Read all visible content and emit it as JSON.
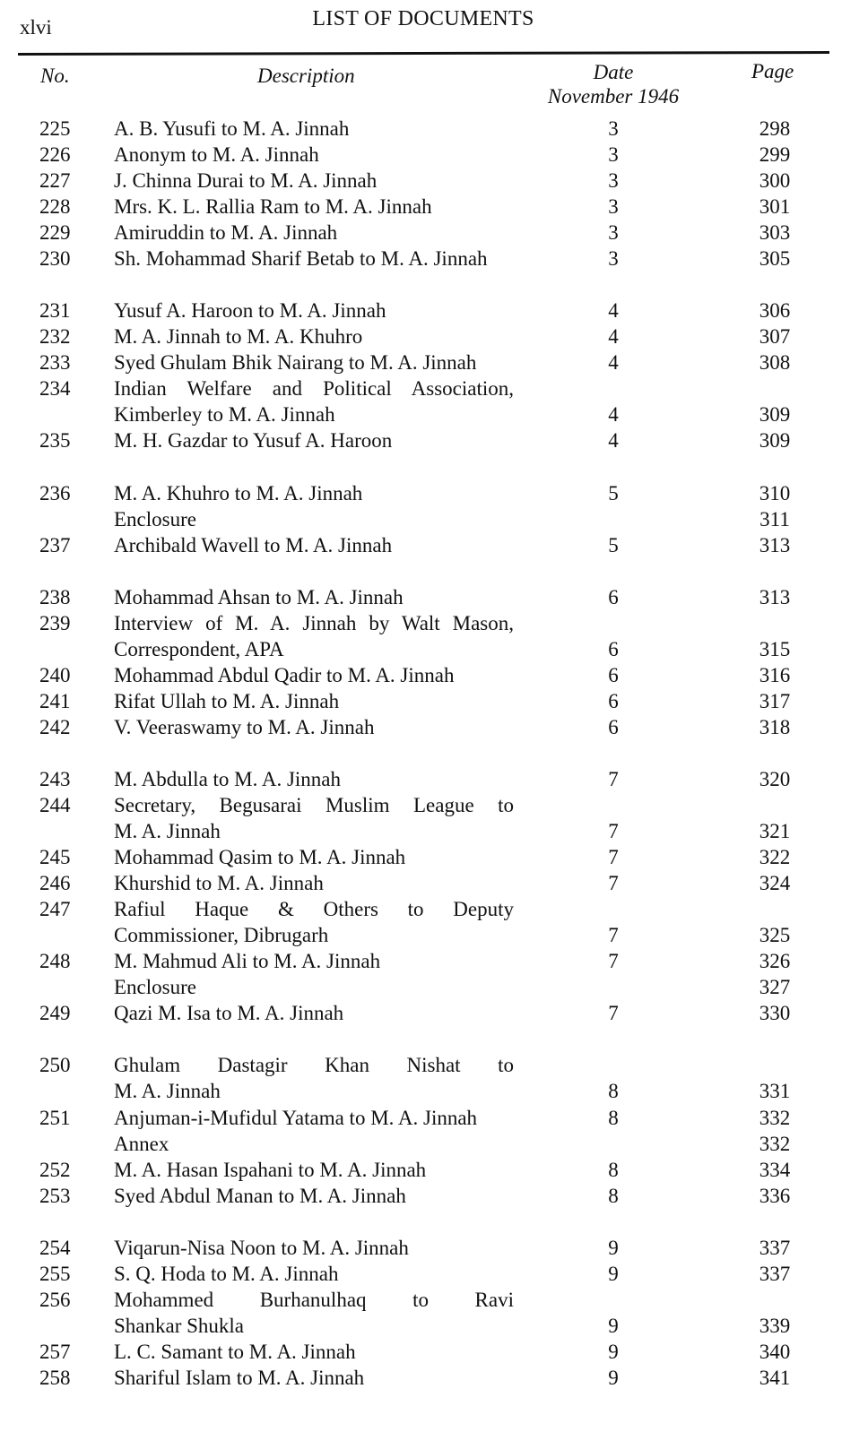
{
  "header": {
    "folio": "xlvi",
    "title": "LIST OF DOCUMENTS"
  },
  "columns": {
    "no": "No.",
    "description": "Description",
    "date": "Date",
    "date_sub": "November 1946",
    "page": "Page"
  },
  "groups": [
    [
      {
        "no": "225",
        "lines": [
          "A. B. Yusufi to M. A. Jinnah"
        ],
        "date": "3",
        "page": "298"
      },
      {
        "no": "226",
        "lines": [
          "Anonym to M. A. Jinnah"
        ],
        "date": "3",
        "page": "299"
      },
      {
        "no": "227",
        "lines": [
          "J. Chinna Durai to M. A. Jinnah"
        ],
        "date": "3",
        "page": "300"
      },
      {
        "no": "228",
        "lines": [
          "Mrs. K. L. Rallia Ram to M. A. Jinnah"
        ],
        "date": "3",
        "page": "301"
      },
      {
        "no": "229",
        "lines": [
          "Amiruddin to M. A. Jinnah"
        ],
        "date": "3",
        "page": "303"
      },
      {
        "no": "230",
        "lines": [
          "Sh. Mohammad Sharif Betab to M. A. Jinnah"
        ],
        "date": "3",
        "page": "305"
      }
    ],
    [
      {
        "no": "231",
        "lines": [
          "Yusuf A. Haroon to M. A. Jinnah"
        ],
        "date": "4",
        "page": "306"
      },
      {
        "no": "232",
        "lines": [
          "M. A. Jinnah to M. A. Khuhro"
        ],
        "date": "4",
        "page": "307"
      },
      {
        "no": "233",
        "lines": [
          "Syed Ghulam Bhik Nairang to M. A. Jinnah"
        ],
        "date": "4",
        "page": "308"
      },
      {
        "no": "234",
        "lines": [
          "Indian Welfare and Political Association,",
          "Kimberley to M. A. Jinnah"
        ],
        "date": "4",
        "page": "309"
      },
      {
        "no": "235",
        "lines": [
          "M. H. Gazdar to Yusuf A. Haroon"
        ],
        "date": "4",
        "page": "309"
      }
    ],
    [
      {
        "no": "236",
        "lines": [
          "M. A. Khuhro to M. A. Jinnah"
        ],
        "date": "5",
        "page": "310"
      },
      {
        "no": "",
        "lines": [
          "Enclosure"
        ],
        "date": "",
        "page": "311"
      },
      {
        "no": "237",
        "lines": [
          "Archibald Wavell to M. A. Jinnah"
        ],
        "date": "5",
        "page": "313"
      }
    ],
    [
      {
        "no": "238",
        "lines": [
          "Mohammad Ahsan to M. A. Jinnah"
        ],
        "date": "6",
        "page": "313"
      },
      {
        "no": "239",
        "lines": [
          "Interview of M. A. Jinnah by Walt Mason,",
          "Correspondent, APA"
        ],
        "date": "6",
        "page": "315"
      },
      {
        "no": "240",
        "lines": [
          "Mohammad Abdul Qadir to M. A. Jinnah"
        ],
        "date": "6",
        "page": "316"
      },
      {
        "no": "241",
        "lines": [
          "Rifat Ullah to M. A. Jinnah"
        ],
        "date": "6",
        "page": "317"
      },
      {
        "no": "242",
        "lines": [
          "V. Veeraswamy to M. A. Jinnah"
        ],
        "date": "6",
        "page": "318"
      }
    ],
    [
      {
        "no": "243",
        "lines": [
          "M. Abdulla to M. A. Jinnah"
        ],
        "date": "7",
        "page": "320"
      },
      {
        "no": "244",
        "lines": [
          "Secretary, Begusarai Muslim League to",
          "M. A. Jinnah"
        ],
        "date": "7",
        "page": "321"
      },
      {
        "no": "245",
        "lines": [
          "Mohammad Qasim to M. A. Jinnah"
        ],
        "date": "7",
        "page": "322"
      },
      {
        "no": "246",
        "lines": [
          "Khurshid to M. A. Jinnah"
        ],
        "date": "7",
        "page": "324"
      },
      {
        "no": "247",
        "lines": [
          "Rafiul Haque & Others to Deputy",
          "Commissioner, Dibrugarh"
        ],
        "date": "7",
        "page": "325"
      },
      {
        "no": "248",
        "lines": [
          "M. Mahmud Ali to M. A. Jinnah"
        ],
        "date": "7",
        "page": "326"
      },
      {
        "no": "",
        "lines": [
          "Enclosure"
        ],
        "date": "",
        "page": "327"
      },
      {
        "no": "249",
        "lines": [
          "Qazi M. Isa to M. A. Jinnah"
        ],
        "date": "7",
        "page": "330"
      }
    ],
    [
      {
        "no": "250",
        "lines": [
          "Ghulam Dastagir Khan Nishat to",
          "M. A. Jinnah"
        ],
        "date": "8",
        "page": "331"
      },
      {
        "no": "251",
        "lines": [
          "Anjuman-i-Mufidul Yatama to M. A. Jinnah"
        ],
        "date": "8",
        "page": "332"
      },
      {
        "no": "",
        "lines": [
          "Annex"
        ],
        "date": "",
        "page": "332"
      },
      {
        "no": "252",
        "lines": [
          "M. A. Hasan Ispahani to M. A. Jinnah"
        ],
        "date": "8",
        "page": "334"
      },
      {
        "no": "253",
        "lines": [
          "Syed Abdul Manan to M. A. Jinnah"
        ],
        "date": "8",
        "page": "336"
      }
    ],
    [
      {
        "no": "254",
        "lines": [
          "Viqarun-Nisa Noon to M. A. Jinnah"
        ],
        "date": "9",
        "page": "337"
      },
      {
        "no": "255",
        "lines": [
          "S. Q. Hoda to M. A. Jinnah"
        ],
        "date": "9",
        "page": "337"
      },
      {
        "no": "256",
        "lines": [
          "Mohammed Burhanulhaq to Ravi",
          "Shankar Shukla"
        ],
        "date": "9",
        "page": "339"
      },
      {
        "no": "257",
        "lines": [
          "L. C. Samant to M. A. Jinnah"
        ],
        "date": "9",
        "page": "340"
      },
      {
        "no": "258",
        "lines": [
          "Shariful Islam to M. A. Jinnah"
        ],
        "date": "9",
        "page": "341"
      }
    ]
  ]
}
